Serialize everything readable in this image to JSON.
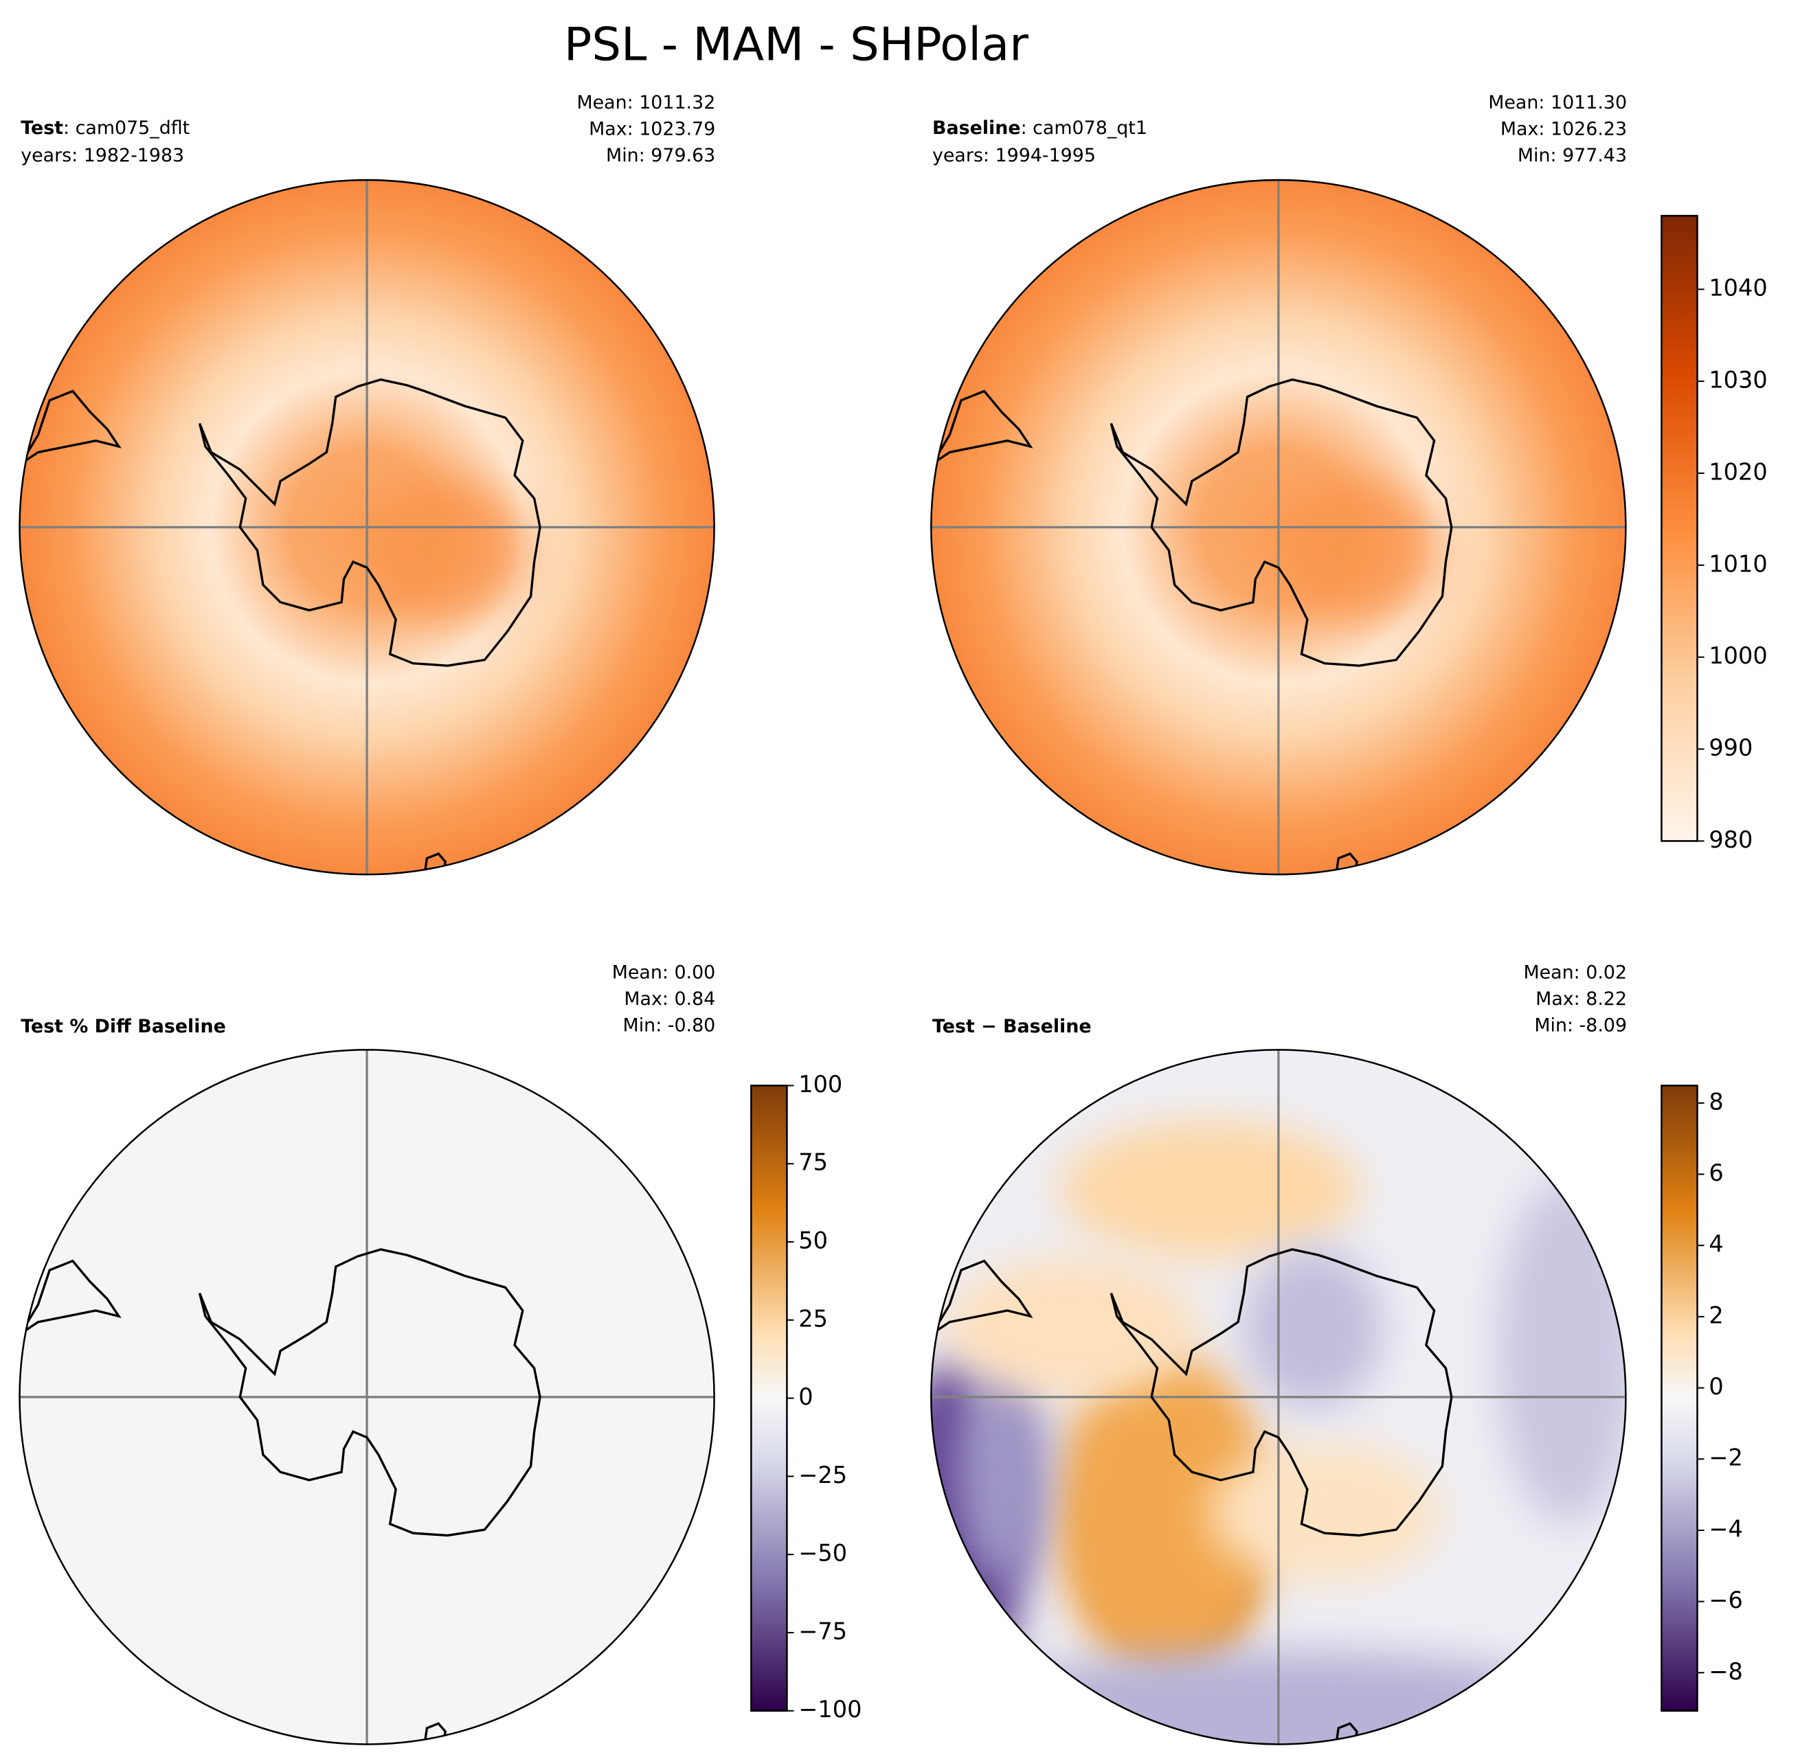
{
  "title": "PSL - MAM - SHPolar",
  "panels": [
    {
      "label": "Test",
      "name": ": cam075_dflt",
      "years": "years: 1982-1983",
      "stats": [
        "Mean: 1011.32",
        "Max: 1023.79",
        "Min: 979.63"
      ]
    },
    {
      "label": "Baseline",
      "name": ": cam078_qt1",
      "years": "years: 1994-1995",
      "stats": [
        "Mean: 1011.30",
        "Max: 1026.23",
        "Min: 977.43"
      ],
      "colorbar": {
        "ylim": [
          980,
          1048
        ],
        "yticks": [
          980,
          990,
          1000,
          1010,
          1020,
          1030,
          1040
        ]
      }
    },
    {
      "label": "Test % Diff Baseline",
      "stats": [
        "Mean:  0.00",
        "Max:  0.84",
        "Min: -0.80"
      ],
      "colorbar": {
        "ylim": [
          -100,
          100
        ],
        "yticks": [
          {
            "value": -100,
            "label": "−100"
          },
          {
            "value": -75,
            "label": "−75"
          },
          {
            "value": -50,
            "label": "−50"
          },
          {
            "value": -25,
            "label": "−25"
          },
          0,
          25,
          50,
          75,
          100
        ]
      }
    },
    {
      "label": "Test − Baseline",
      "stats": [
        "Mean:  0.02",
        "Max:  8.22",
        "Min: -8.09"
      ],
      "colorbar": {
        "ylim": [
          -9.07,
          8.49
        ],
        "yticks": [
          {
            "value": -8,
            "label": "−8"
          },
          {
            "value": -6,
            "label": "−6"
          },
          {
            "value": -4,
            "label": "−4"
          },
          {
            "value": -2,
            "label": "−2"
          },
          0,
          2,
          4,
          6,
          8
        ]
      }
    }
  ]
}
